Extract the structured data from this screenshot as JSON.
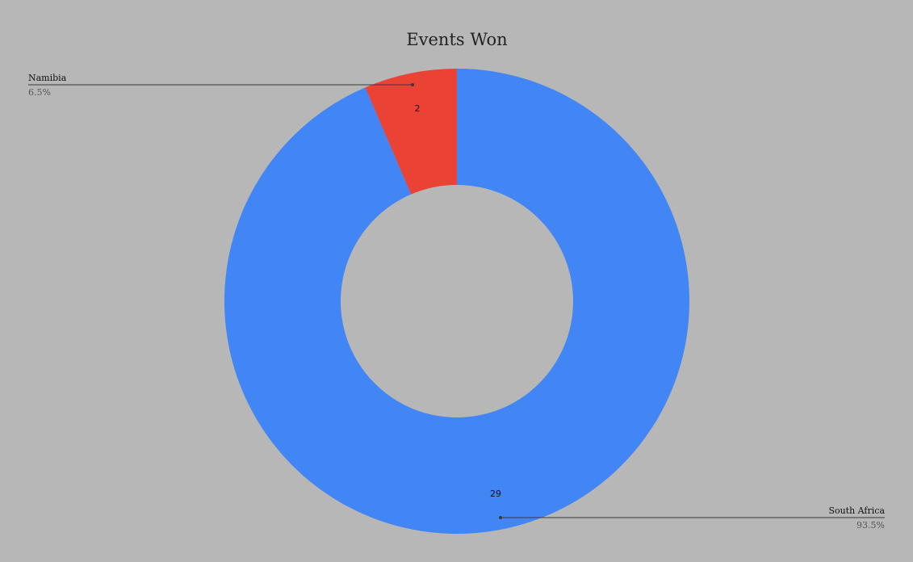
{
  "chart_data": {
    "type": "pie",
    "donut": true,
    "title": "Events Won",
    "background": "#b7b7b7",
    "slices": [
      {
        "label": "South Africa",
        "value": 29,
        "percent_label": "93.5%",
        "color": "#4285f4"
      },
      {
        "label": "Namibia",
        "value": 2,
        "percent_label": "6.5%",
        "color": "#ea4335"
      }
    ]
  }
}
